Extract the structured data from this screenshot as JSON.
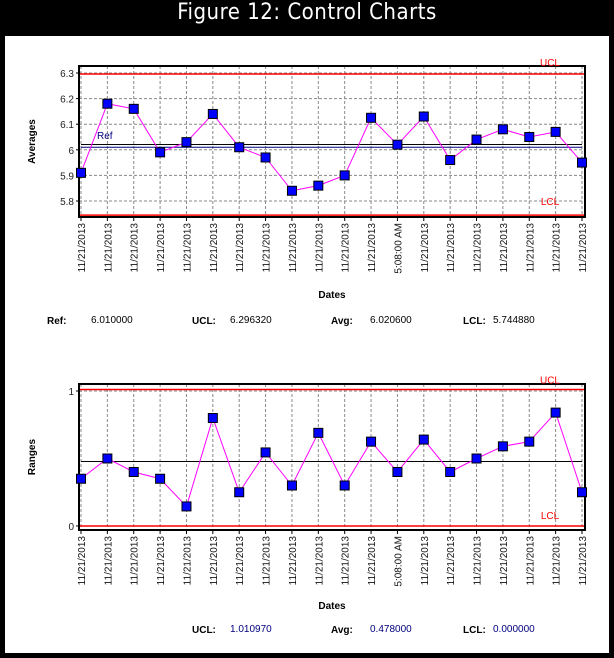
{
  "title": "Figure 12: Control Charts",
  "chart_data": [
    {
      "type": "line",
      "ylabel": "Averages",
      "xlabel": "Dates",
      "ylim": [
        5.73,
        6.31
      ],
      "yticks": [
        5.8,
        5.9,
        6,
        6.1,
        6.2,
        6.3
      ],
      "grid": true,
      "categories": [
        "11/21/2013",
        "11/21/2013",
        "11/21/2013",
        "11/21/2013",
        "11/21/2013",
        "11/21/2013",
        "11/21/2013",
        "11/21/2013",
        "11/21/2013",
        "11/21/2013",
        "11/21/2013",
        "11/21/2013",
        "5:08:00 AM",
        "11/21/2013",
        "11/21/2013",
        "11/21/2013",
        "11/21/2013",
        "11/21/2013",
        "11/21/2013",
        "11/21/2013"
      ],
      "values": [
        5.91,
        6.18,
        6.16,
        5.99,
        6.03,
        6.14,
        6.01,
        5.97,
        5.84,
        5.86,
        5.9,
        6.125,
        6.02,
        6.13,
        5.96,
        6.04,
        6.08,
        6.05,
        6.07,
        5.95
      ],
      "line_color": "#ff00ff",
      "marker_color": "#0000ff",
      "limits": {
        "ucl": 6.29632,
        "lcl": 5.74488,
        "avg": 6.0206,
        "ref": 6.01
      },
      "line_labels": {
        "ucl": "UCL",
        "lcl": "LCL",
        "ref": "Ref"
      },
      "stats": [
        {
          "label": "Ref:",
          "value": "6.010000"
        },
        {
          "label": "UCL:",
          "value": "6.296320"
        },
        {
          "label": "Avg:",
          "value": "6.020600"
        },
        {
          "label": "LCL:",
          "value": "5.744880"
        }
      ]
    },
    {
      "type": "line",
      "ylabel": "Ranges",
      "xlabel": "Dates",
      "ylim": [
        -0.02,
        1.03
      ],
      "yticks": [
        0,
        1
      ],
      "grid": true,
      "categories": [
        "11/21/2013",
        "11/21/2013",
        "11/21/2013",
        "11/21/2013",
        "11/21/2013",
        "11/21/2013",
        "11/21/2013",
        "11/21/2013",
        "11/21/2013",
        "11/21/2013",
        "11/21/2013",
        "11/21/2013",
        "5:08:00 AM",
        "11/21/2013",
        "11/21/2013",
        "11/21/2013",
        "11/21/2013",
        "11/21/2013",
        "11/21/2013",
        "11/21/2013"
      ],
      "values": [
        0.35,
        0.5,
        0.4,
        0.35,
        0.145,
        0.8,
        0.25,
        0.545,
        0.3,
        0.69,
        0.3,
        0.625,
        0.4,
        0.64,
        0.4,
        0.5,
        0.59,
        0.625,
        0.84,
        0.25
      ],
      "line_color": "#ff00ff",
      "marker_color": "#0000ff",
      "limits": {
        "ucl": 1.01097,
        "lcl": 0.0,
        "avg": 0.478
      },
      "line_labels": {
        "ucl": "UCL",
        "lcl": "LCL"
      },
      "stats": [
        {
          "label": "UCL:",
          "value": "1.010970"
        },
        {
          "label": "Avg:",
          "value": "0.478000"
        },
        {
          "label": "LCL:",
          "value": "0.000000"
        }
      ]
    }
  ]
}
